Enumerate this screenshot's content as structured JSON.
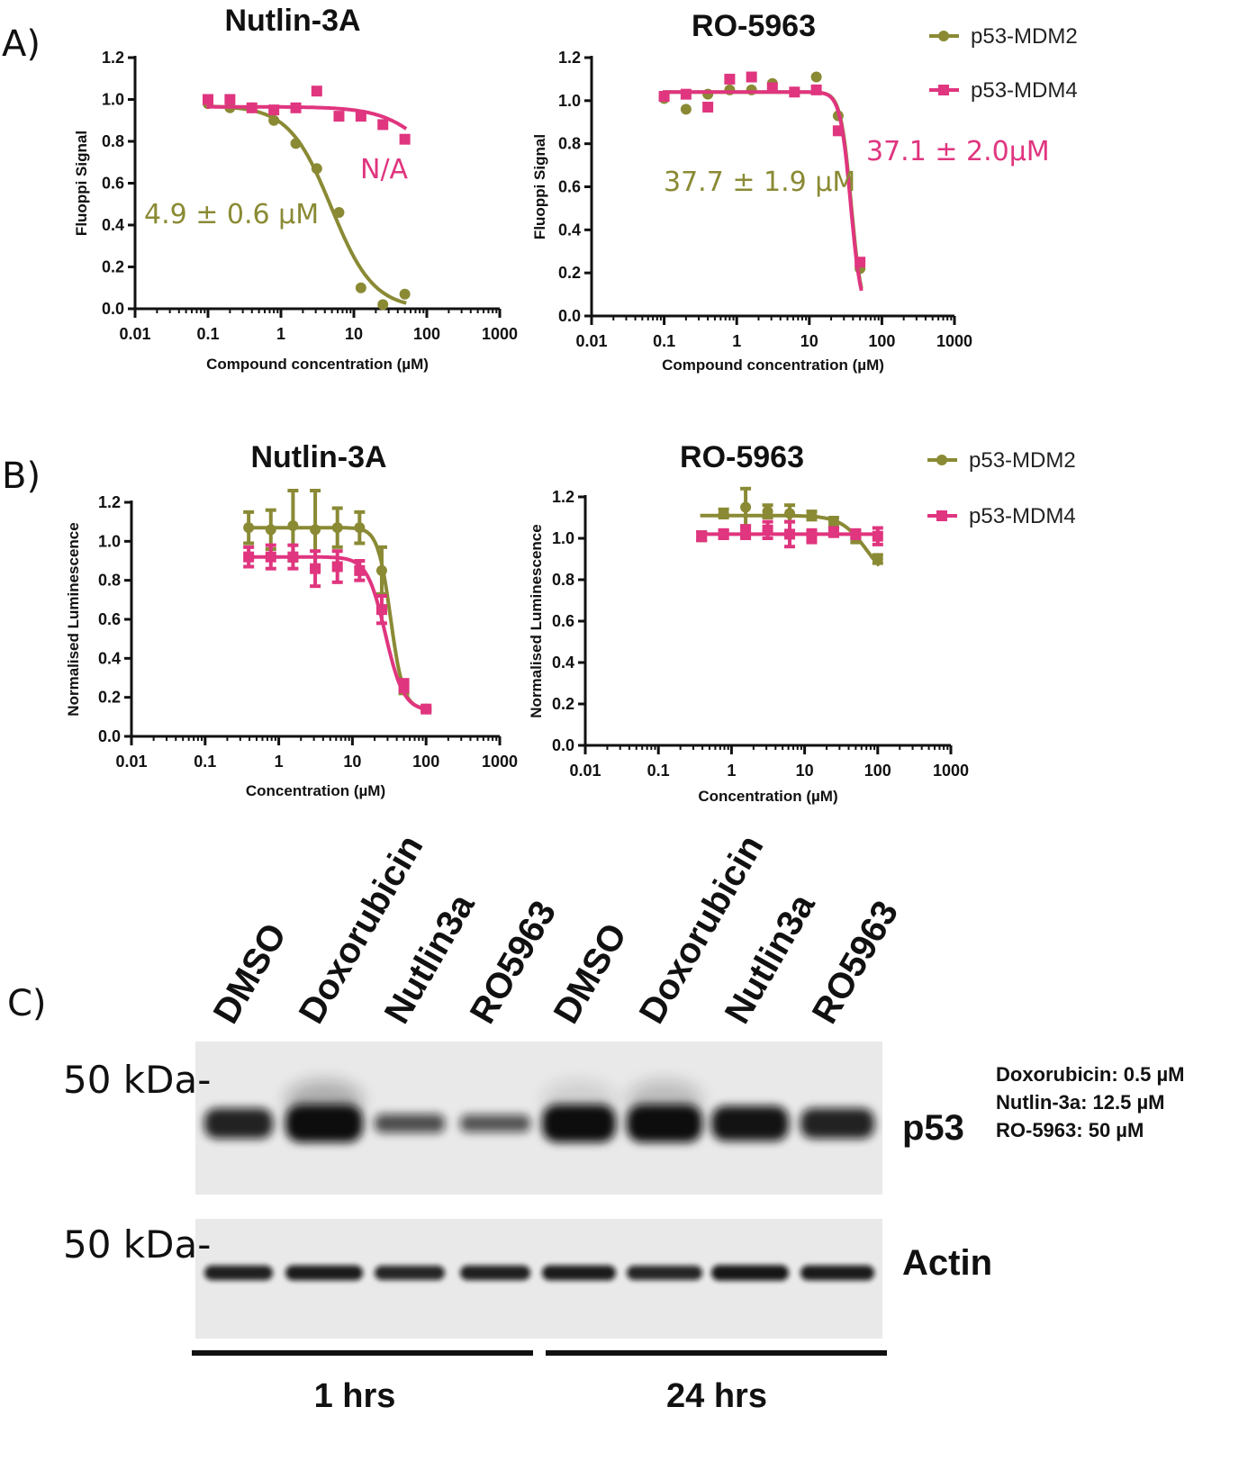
{
  "colors": {
    "mdm2": "#8a8a35",
    "mdm4": "#e0357f",
    "ink": "#111111",
    "blot_bg": "#e9e9e9",
    "band": "#111111"
  },
  "panels": {
    "a": "A)",
    "b": "B)",
    "c": "C)"
  },
  "legend": {
    "mdm2": "p53-MDM2",
    "mdm4": "p53-MDM4"
  },
  "chart_data": [
    {
      "type": "scatter",
      "id": "a1",
      "title": "Nutlin-3A",
      "xlabel": "Compound concentration (µM)",
      "ylabel": "Fluoppi Signal",
      "xscale": "log",
      "xlim": [
        0.01,
        1000
      ],
      "ylim": [
        0,
        1.2
      ],
      "xticks": [
        "0.01",
        "0.1",
        "1",
        "10",
        "100",
        "1000"
      ],
      "yticks": [
        "0.0",
        "0.2",
        "0.4",
        "0.6",
        "0.8",
        "1.0",
        "1.2"
      ],
      "annotations": [
        {
          "series": "mdm2",
          "text": "4.9 ± 0.6 µM",
          "x": 0.1,
          "y": 0.45
        },
        {
          "series": "mdm4",
          "text": "N/A",
          "x": 16,
          "y": 0.66
        }
      ],
      "series": [
        {
          "name": "p53-MDM2",
          "key": "mdm2",
          "marker": "circle",
          "x": [
            0.1,
            0.2,
            0.4,
            0.8,
            1.6,
            3.1,
            6.25,
            12.5,
            25,
            50
          ],
          "y": [
            0.98,
            0.96,
            0.96,
            0.9,
            0.79,
            0.67,
            0.46,
            0.1,
            0.02,
            0.07
          ],
          "curve": {
            "top": 0.97,
            "bottom": 0.0,
            "ec50": 4.9,
            "hill": 1.5
          }
        },
        {
          "name": "p53-MDM4",
          "key": "mdm4",
          "marker": "square",
          "x": [
            0.1,
            0.2,
            0.4,
            0.8,
            1.6,
            3.1,
            6.25,
            12.5,
            25,
            50
          ],
          "y": [
            1.0,
            1.0,
            0.96,
            0.95,
            0.96,
            1.04,
            0.92,
            0.92,
            0.88,
            0.81
          ],
          "curve": {
            "top": 0.965,
            "bottom": 0.55,
            "ec50": 120,
            "hill": 1.3
          }
        }
      ]
    },
    {
      "type": "scatter",
      "id": "a2",
      "title": "RO-5963",
      "xlabel": "Compound concentration (µM)",
      "ylabel": "Fluoppi Signal",
      "xscale": "log",
      "xlim": [
        0.01,
        1000
      ],
      "ylim": [
        0,
        1.2
      ],
      "xticks": [
        "0.01",
        "0.1",
        "1",
        "10",
        "100",
        "1000"
      ],
      "yticks": [
        "0.0",
        "0.2",
        "0.4",
        "0.6",
        "0.8",
        "1.0",
        "1.2"
      ],
      "annotations": [
        {
          "series": "mdm2",
          "text": "37.7 ± 1.9 µM",
          "x": 0.1,
          "y": 0.62
        },
        {
          "series": "mdm4",
          "text": "37.1 ± 2.0µM",
          "x": 42,
          "y": 0.76
        }
      ],
      "series": [
        {
          "name": "p53-MDM2",
          "key": "mdm2",
          "marker": "circle",
          "x": [
            0.1,
            0.2,
            0.4,
            0.8,
            1.6,
            3.1,
            6.25,
            12.5,
            25,
            50
          ],
          "y": [
            1.01,
            0.96,
            1.03,
            1.05,
            1.05,
            1.08,
            1.04,
            1.11,
            0.93,
            0.22
          ],
          "curve": {
            "top": 1.04,
            "bottom": 0.0,
            "ec50": 37.7,
            "hill": 6
          }
        },
        {
          "name": "p53-MDM4",
          "key": "mdm4",
          "marker": "square",
          "x": [
            0.1,
            0.2,
            0.4,
            0.8,
            1.6,
            3.1,
            6.25,
            12.5,
            25,
            50
          ],
          "y": [
            1.02,
            1.03,
            0.97,
            1.1,
            1.11,
            1.06,
            1.04,
            1.05,
            0.86,
            0.25
          ],
          "curve": {
            "top": 1.04,
            "bottom": 0.0,
            "ec50": 37.1,
            "hill": 6
          }
        }
      ]
    },
    {
      "type": "scatter",
      "id": "b1",
      "title": "Nutlin-3A",
      "xlabel": "Concentration (µM)",
      "ylabel": "Normalised Luminescence",
      "xscale": "log",
      "xlim": [
        0.01,
        1000
      ],
      "ylim": [
        0,
        1.2
      ],
      "xticks": [
        "0.01",
        "0.1",
        "1",
        "10",
        "100",
        "1000"
      ],
      "yticks": [
        "0.0",
        "0.2",
        "0.4",
        "0.6",
        "0.8",
        "1.0",
        "1.2"
      ],
      "series": [
        {
          "name": "p53-MDM2",
          "key": "mdm2",
          "marker": "circle",
          "x": [
            0.39,
            0.78,
            1.56,
            3.125,
            6.25,
            12.5,
            25,
            50,
            100
          ],
          "y": [
            1.07,
            1.06,
            1.08,
            1.06,
            1.07,
            1.07,
            0.85,
            0.24,
            0.14
          ],
          "err": [
            0.08,
            0.1,
            0.18,
            0.2,
            0.1,
            0.08,
            0.12,
            0.02,
            0.01
          ],
          "curve": {
            "top": 1.07,
            "bottom": 0.14,
            "ec50": 33,
            "hill": 5
          }
        },
        {
          "name": "p53-MDM4",
          "key": "mdm4",
          "marker": "square",
          "x": [
            0.39,
            0.78,
            1.56,
            3.125,
            6.25,
            12.5,
            25,
            50,
            100
          ],
          "y": [
            0.92,
            0.92,
            0.92,
            0.86,
            0.87,
            0.85,
            0.65,
            0.26,
            0.14
          ],
          "err": [
            0.05,
            0.06,
            0.06,
            0.09,
            0.08,
            0.05,
            0.07,
            0.03,
            0.01
          ],
          "curve": {
            "top": 0.92,
            "bottom": 0.13,
            "ec50": 28,
            "hill": 3.5
          }
        }
      ]
    },
    {
      "type": "scatter",
      "id": "b2",
      "title": "RO-5963",
      "xlabel": "Concentration (µM)",
      "ylabel": "Normalised Luminescence",
      "xscale": "log",
      "xlim": [
        0.01,
        1000
      ],
      "ylim": [
        0,
        1.2
      ],
      "xticks": [
        "0.01",
        "0.1",
        "1",
        "10",
        "100",
        "1000"
      ],
      "yticks": [
        "0.0",
        "0.2",
        "0.4",
        "0.6",
        "0.8",
        "1.0",
        "1.2"
      ],
      "series": [
        {
          "name": "p53-MDM2",
          "key": "mdm2",
          "marker": "circle",
          "x": [
            0.39,
            0.78,
            1.56,
            3.125,
            6.25,
            12.5,
            25,
            50,
            100
          ],
          "y": [
            1.01,
            1.12,
            1.15,
            1.13,
            1.12,
            1.11,
            1.08,
            1.0,
            0.9
          ],
          "err": [
            0.02,
            0.02,
            0.09,
            0.03,
            0.04,
            0.02,
            0.02,
            0.02,
            0.02
          ],
          "curve": {
            "top": 1.11,
            "bottom": 0.78,
            "ec50": 70,
            "hill": 2.5
          }
        },
        {
          "name": "p53-MDM4",
          "key": "mdm4",
          "marker": "square",
          "x": [
            0.39,
            0.78,
            1.56,
            3.125,
            6.25,
            12.5,
            25,
            50,
            100
          ],
          "y": [
            1.01,
            1.02,
            1.03,
            1.04,
            1.02,
            1.01,
            1.03,
            1.02,
            1.01
          ],
          "err": [
            0.02,
            0.02,
            0.03,
            0.04,
            0.06,
            0.03,
            0.02,
            0.02,
            0.04
          ],
          "curve": {
            "top": 1.02,
            "bottom": 1.02,
            "ec50": 10,
            "hill": 1
          }
        }
      ]
    }
  ],
  "blot": {
    "lanes": [
      "DMSO",
      "Doxorubicin",
      "Nutlin3a",
      "RO5963",
      "DMSO",
      "Doxorubicin",
      "Nutlin3a",
      "RO5963"
    ],
    "p53": {
      "label": "p53",
      "marker": "50 kDa-",
      "intensity": [
        0.85,
        1.0,
        0.55,
        0.5,
        1.0,
        1.0,
        0.95,
        0.85
      ],
      "smear": [
        0,
        0.6,
        0,
        0,
        0.25,
        0.45,
        0,
        0
      ]
    },
    "actin": {
      "label": "Actin",
      "marker": "50 kDa-",
      "intensity": [
        0.8,
        0.85,
        0.75,
        0.8,
        0.85,
        0.75,
        0.9,
        0.85
      ]
    },
    "concentrations": [
      "Doxorubicin: 0.5 µM",
      "Nutlin-3a: 12.5 µM",
      "RO-5963: 50 µM"
    ],
    "time_groups": [
      "1 hrs",
      "24 hrs"
    ]
  }
}
